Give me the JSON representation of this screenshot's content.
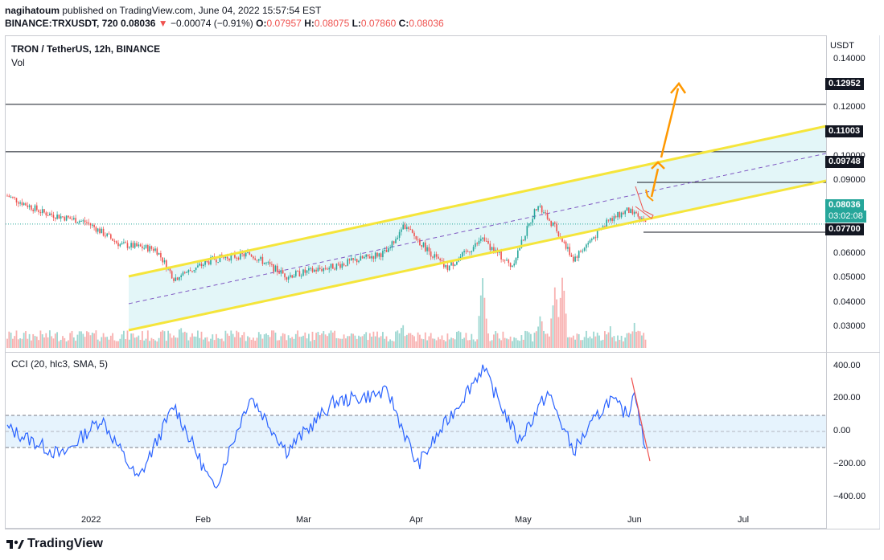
{
  "header": {
    "author": "nagihatoum",
    "published_text": "published on TradingView.com, June 04, 2022 15:57:54 EST",
    "symbol_line": "BINANCE:TRXUSDT, 720",
    "price": "0.08036",
    "change": "−0.00074 (−0.91%)",
    "open_label": "O:",
    "open": "0.07957",
    "high_label": "H:",
    "high": "0.08075",
    "low_label": "L:",
    "low": "0.07860",
    "close_label": "C:",
    "close": "0.08036"
  },
  "main_pane": {
    "title": "TRON / TetherUS, 12h, BINANCE",
    "volume_label": "Vol",
    "currency": "USDT",
    "price_ticks": [
      "0.14000",
      "0.12000",
      "0.10000",
      "0.09000",
      "0.06000",
      "0.05000",
      "0.04000",
      "0.03000"
    ],
    "labels": {
      "level1": "0.12952",
      "level2": "0.11003",
      "level3": "0.09748",
      "last_price": "0.08036",
      "countdown": "03:02:08",
      "level4": "0.07700"
    }
  },
  "cci_pane": {
    "title": "CCI (20, hlc3, SMA, 5)",
    "ticks": [
      "400.00",
      "200.00",
      "0.00",
      "−200.00",
      "−400.00"
    ]
  },
  "x_axis": [
    "2022",
    "Feb",
    "Mar",
    "Apr",
    "May",
    "Jun",
    "Jul"
  ],
  "brand": "TradingView",
  "colors": {
    "up": "#26a69a",
    "down": "#ef5350",
    "channel": "#f5e53b",
    "arrow": "#ff9800",
    "cci": "#2962ff"
  },
  "chart_data": {
    "type": "line",
    "title": "TRON / TetherUS, 12h, BINANCE",
    "ylabel": "USDT",
    "series": [
      {
        "name": "",
        "x": [
          "2021-12-10",
          "2021-12-20",
          "2022-01-01",
          "2022-01-10",
          "2022-01-20",
          "2022-01-25",
          "2022-02-05",
          "2022-02-15",
          "2022-02-25",
          "2022-03-10",
          "2022-03-25",
          "2022-03-29",
          "2022-04-10",
          "2022-04-20",
          "2022-04-28",
          "2022-05-05",
          "2022-05-10",
          "2022-05-15",
          "2022-05-25",
          "2022-05-30",
          "2022-06-04"
        ],
        "values": [
          0.092,
          0.085,
          0.081,
          0.072,
          0.07,
          0.058,
          0.066,
          0.068,
          0.059,
          0.063,
          0.069,
          0.08,
          0.062,
          0.074,
          0.063,
          0.088,
          0.079,
          0.066,
          0.082,
          0.086,
          0.0804
        ]
      }
    ],
    "cci": [
      {
        "x": "2021-12-10",
        "value": 20
      },
      {
        "x": "2021-12-25",
        "value": -150
      },
      {
        "x": "2022-01-05",
        "value": 80
      },
      {
        "x": "2022-01-15",
        "value": -300
      },
      {
        "x": "2022-01-25",
        "value": 160
      },
      {
        "x": "2022-02-05",
        "value": -360
      },
      {
        "x": "2022-02-15",
        "value": 220
      },
      {
        "x": "2022-02-25",
        "value": -120
      },
      {
        "x": "2022-03-10",
        "value": 180
      },
      {
        "x": "2022-03-25",
        "value": 240
      },
      {
        "x": "2022-04-02",
        "value": -210
      },
      {
        "x": "2022-04-20",
        "value": 390
      },
      {
        "x": "2022-04-30",
        "value": -60
      },
      {
        "x": "2022-05-08",
        "value": 240
      },
      {
        "x": "2022-05-15",
        "value": -120
      },
      {
        "x": "2022-05-25",
        "value": 200
      },
      {
        "x": "2022-05-30",
        "value": 100
      },
      {
        "x": "2022-06-01",
        "value": 270
      },
      {
        "x": "2022-06-04",
        "value": -160
      }
    ],
    "horizontal_levels": [
      0.12952,
      0.11003,
      0.09748,
      0.077
    ],
    "y_range": [
      0.025,
      0.142
    ],
    "cci_range": [
      -450,
      450
    ]
  }
}
